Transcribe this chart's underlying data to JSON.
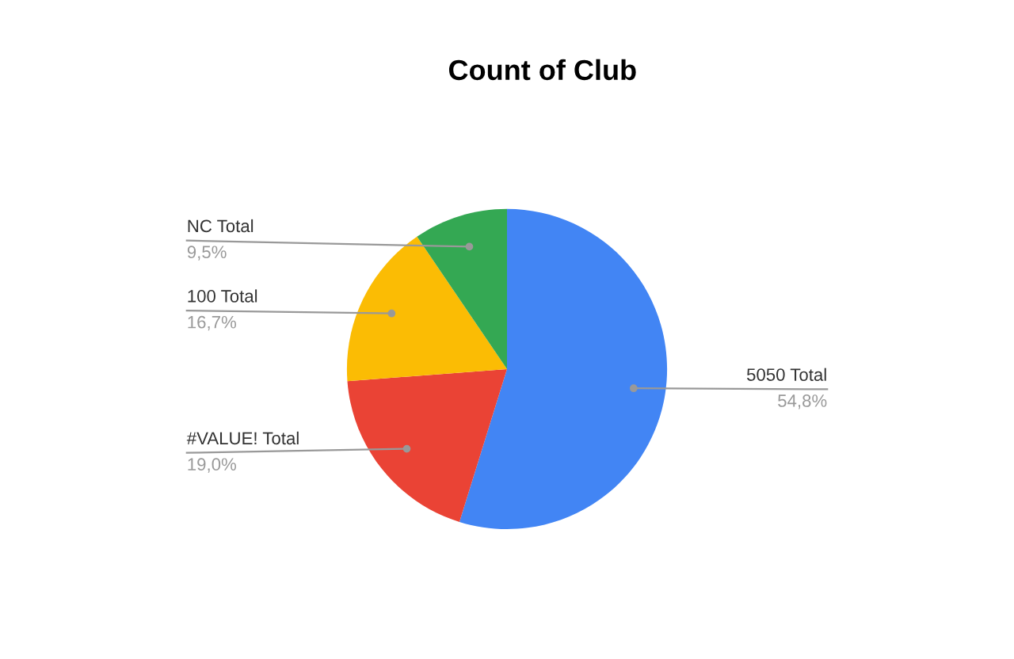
{
  "chart_data": {
    "type": "pie",
    "title": "Count of Club",
    "categories": [
      "5050 Total",
      "#VALUE! Total",
      "100 Total",
      "NC Total"
    ],
    "values": [
      54.8,
      19.0,
      16.7,
      9.5
    ],
    "value_labels": [
      "54,8%",
      "19,0%",
      "16,7%",
      "9,5%"
    ],
    "colors": [
      "#4285f4",
      "#ea4335",
      "#fbbc04",
      "#34a853"
    ],
    "legend": false
  }
}
